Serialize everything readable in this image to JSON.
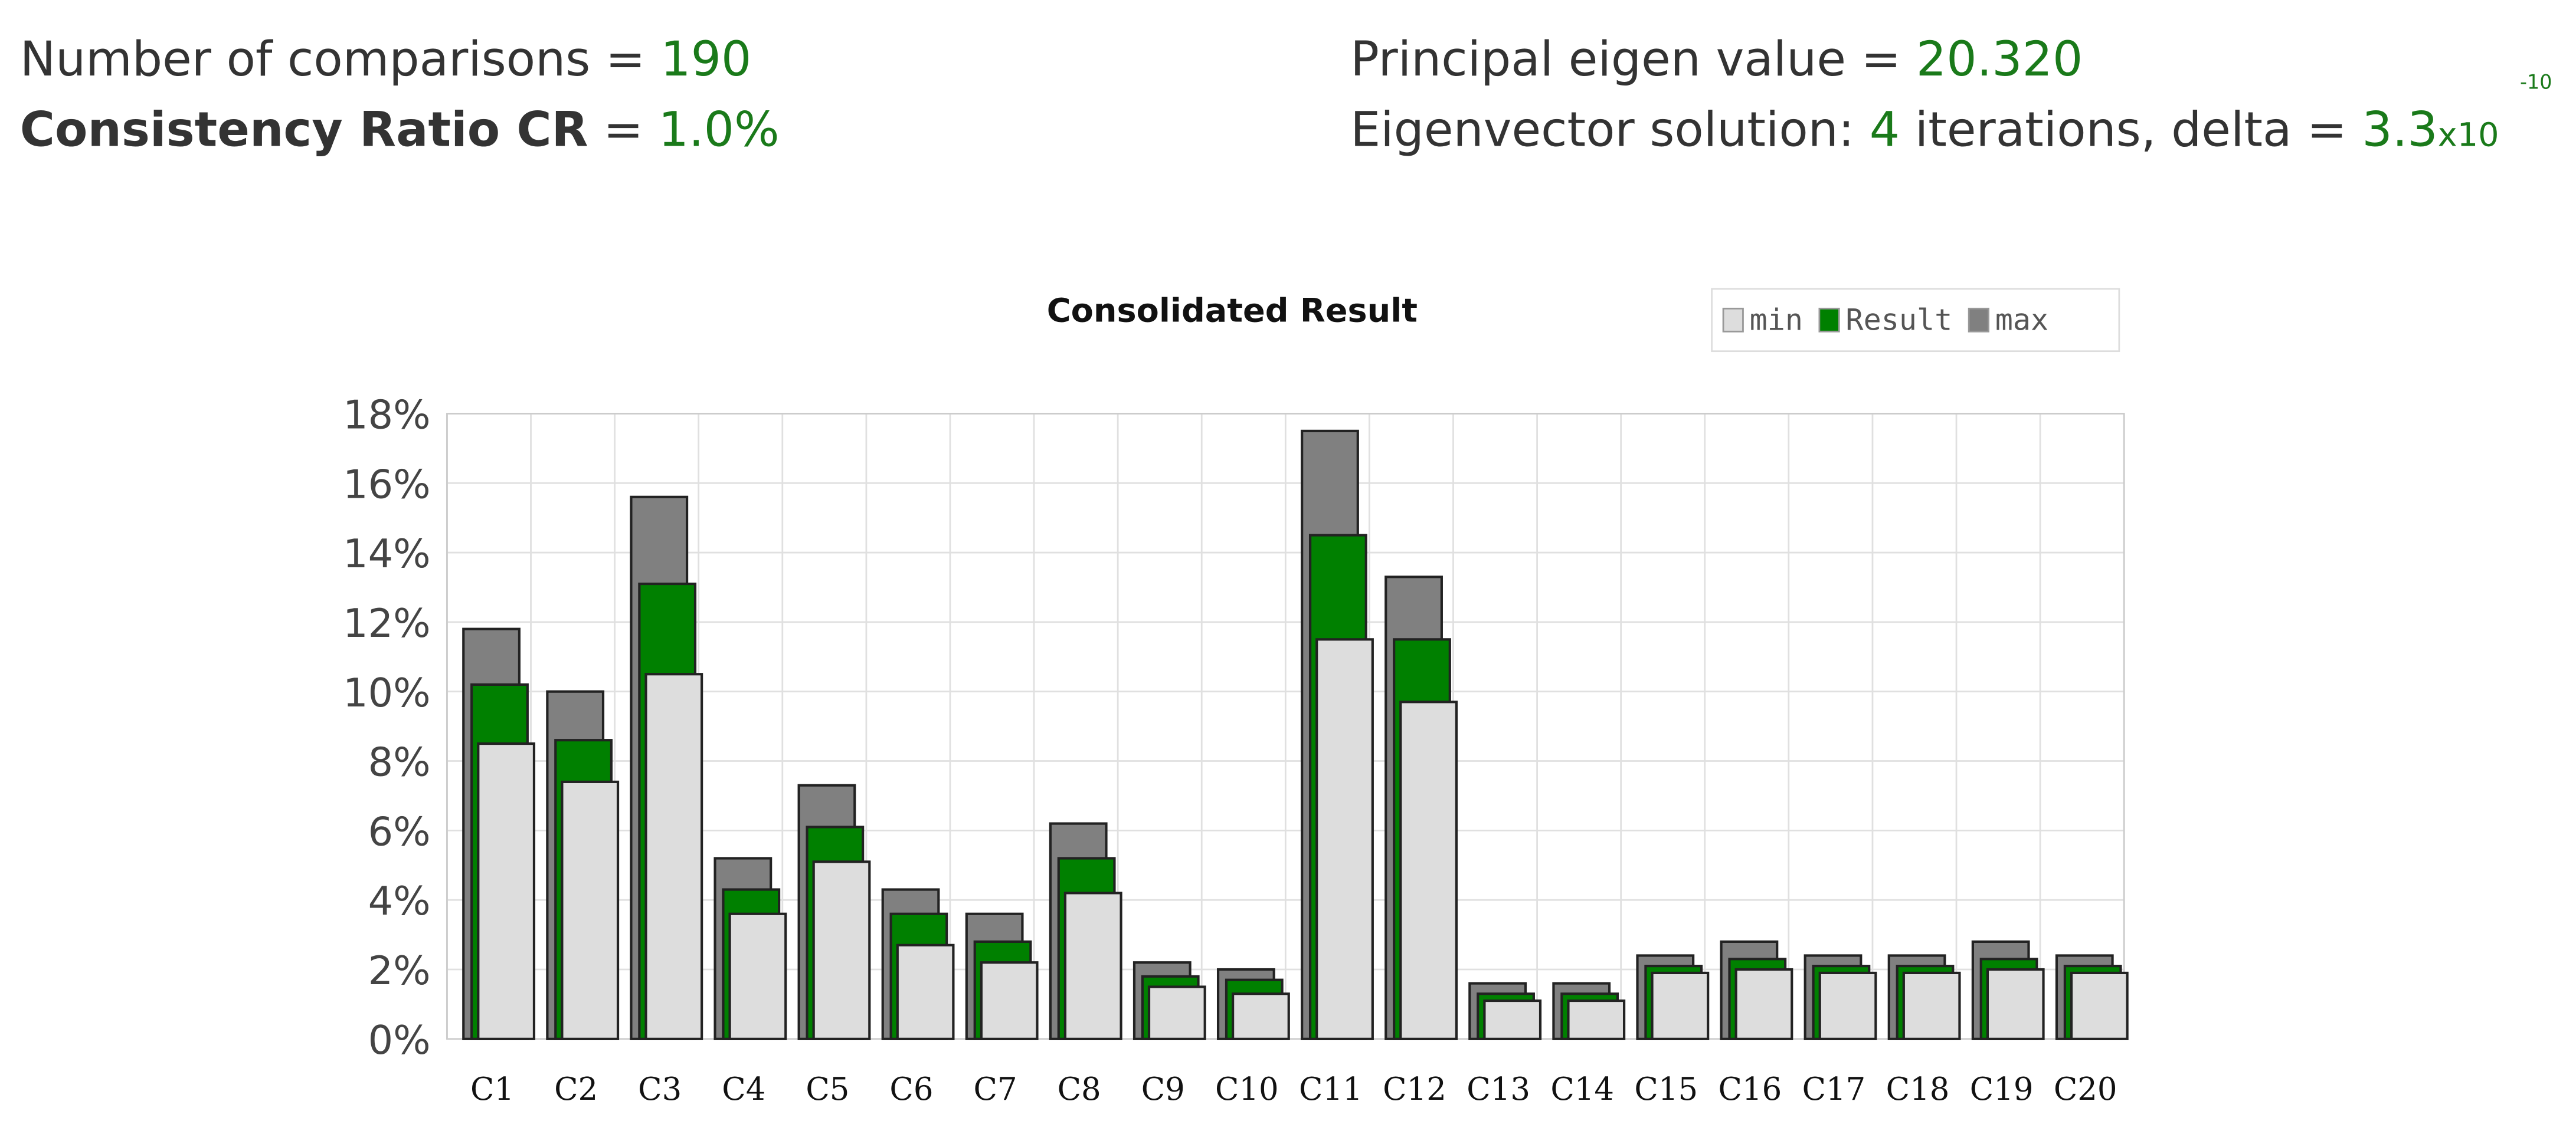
{
  "header": {
    "comparisons_label": "Number of comparisons =",
    "comparisons": "190",
    "cr_label": "Consistency Ratio CR",
    "cr_eq": "=",
    "cr": "1.0%",
    "eigen_label": "Principal eigen value =",
    "eigen": "20.320",
    "eigvec_label": "Eigenvector solution:",
    "iterations": "4",
    "iterations_label": "iterations, delta =",
    "delta": "3.3",
    "delta_times": "x10",
    "delta_exp": "-10"
  },
  "chart_data": {
    "type": "overlap-bar",
    "title": "Consolidated Result",
    "categories": [
      "C1",
      "C2",
      "C3",
      "C4",
      "C5",
      "C6",
      "C7",
      "C8",
      "C9",
      "C10",
      "C11",
      "C12",
      "C13",
      "C14",
      "C15",
      "C16",
      "C17",
      "C18",
      "C19",
      "C20"
    ],
    "series": [
      {
        "name": "min",
        "color": "#dddddd",
        "values": [
          8.5,
          7.4,
          10.5,
          3.6,
          5.1,
          2.7,
          2.2,
          4.2,
          1.5,
          1.3,
          11.5,
          9.7,
          1.1,
          1.1,
          1.9,
          2.0,
          1.9,
          1.9,
          2.0,
          1.9
        ]
      },
      {
        "name": "Result",
        "color": "#008000",
        "values": [
          10.2,
          8.6,
          13.1,
          4.3,
          6.1,
          3.6,
          2.8,
          5.2,
          1.8,
          1.7,
          14.5,
          11.5,
          1.3,
          1.3,
          2.1,
          2.3,
          2.1,
          2.1,
          2.3,
          2.1
        ]
      },
      {
        "name": "max",
        "color": "#808080",
        "values": [
          11.8,
          10.0,
          15.6,
          5.2,
          7.3,
          4.3,
          3.6,
          6.2,
          2.2,
          2.0,
          17.5,
          13.3,
          1.6,
          1.6,
          2.4,
          2.8,
          2.4,
          2.4,
          2.8,
          2.4
        ]
      }
    ],
    "ylim": [
      0,
      18
    ],
    "yticks": [
      {
        "value": 0,
        "label": "0%"
      },
      {
        "value": 2,
        "label": "2%"
      },
      {
        "value": 4,
        "label": "4%"
      },
      {
        "value": 6,
        "label": "6%"
      },
      {
        "value": 8,
        "label": "8%"
      },
      {
        "value": 10,
        "label": "10%"
      },
      {
        "value": 12,
        "label": "12%"
      },
      {
        "value": 14,
        "label": "14%"
      },
      {
        "value": 16,
        "label": "16%"
      },
      {
        "value": 18,
        "label": "18%"
      }
    ],
    "grid": true,
    "legend": "top-right"
  }
}
